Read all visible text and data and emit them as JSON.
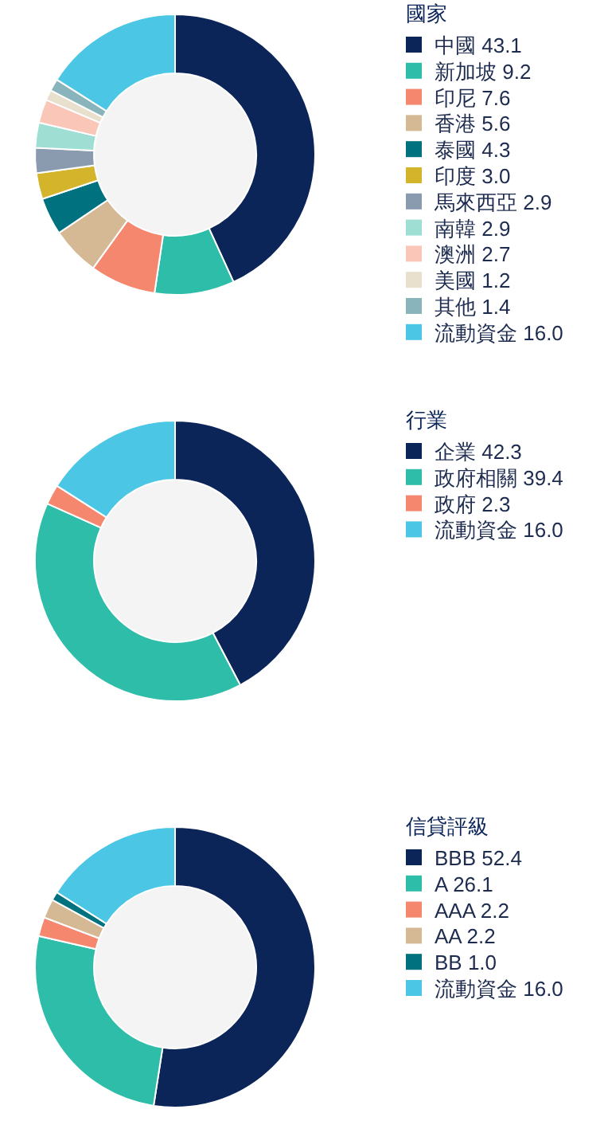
{
  "chart_data": [
    {
      "type": "donut",
      "legend_title": "國家",
      "legend": "right",
      "categories": [
        "中國 43.1",
        "新加坡 9.2",
        "印尼 7.6",
        "香港 5.6",
        "泰國 4.3",
        "印度 3.0",
        "馬來西亞 2.9",
        "南韓 2.9",
        "澳洲 2.7",
        "美國 1.2",
        "其他 1.4",
        "流動資金 16.0"
      ],
      "values": [
        43.1,
        9.2,
        7.6,
        5.6,
        4.3,
        3.0,
        2.9,
        2.9,
        2.7,
        1.2,
        1.4,
        16.0
      ],
      "colors": [
        "#0b2559",
        "#2dbda8",
        "#f4876e",
        "#d4b994",
        "#00727f",
        "#d4b42a",
        "#8a9bb0",
        "#9fdfd3",
        "#f9c6b8",
        "#e8dfcc",
        "#8ab4bb",
        "#4bc6e4"
      ]
    },
    {
      "type": "donut",
      "legend_title": "行業",
      "legend": "right",
      "categories": [
        "企業 42.3",
        "政府相關 39.4",
        "政府 2.3",
        "流動資金 16.0"
      ],
      "values": [
        42.3,
        39.4,
        2.3,
        16.0
      ],
      "colors": [
        "#0b2559",
        "#2dbda8",
        "#f4876e",
        "#4bc6e4"
      ]
    },
    {
      "type": "donut",
      "legend_title": "信貸評級",
      "legend": "right",
      "categories": [
        "BBB 52.4",
        "A 26.1",
        "AAA 2.2",
        "AA 2.2",
        "BB 1.0",
        "流動資金 16.0"
      ],
      "values": [
        52.4,
        26.1,
        2.2,
        2.2,
        1.0,
        16.0
      ],
      "colors": [
        "#0b2559",
        "#2dbda8",
        "#f4876e",
        "#d4b994",
        "#00727f",
        "#4bc6e4"
      ]
    }
  ]
}
